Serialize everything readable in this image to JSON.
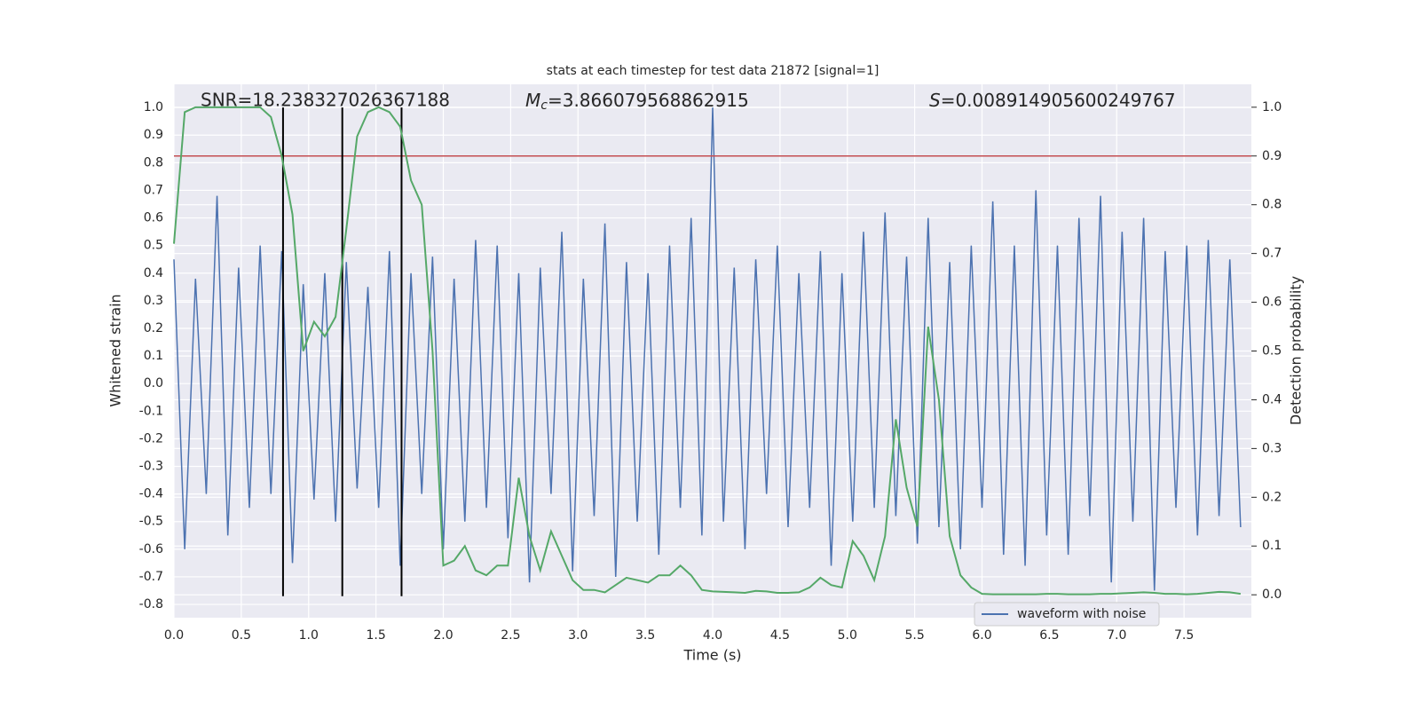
{
  "chart_data": {
    "type": "line",
    "title": "stats at each timestep for test data 21872 [signal=1]",
    "xlabel": "Time (s)",
    "ylabel": "Whitened strain",
    "y2label": "Detection probability",
    "annotations": {
      "snr": "SNR=18.238327026367188",
      "mc": {
        "symbol": "M",
        "sub": "c",
        "text": "=3.866079568862915"
      },
      "s": {
        "symbol": "S",
        "text": "=0.008914905600249767"
      }
    },
    "x": [
      0,
      0.08,
      0.16,
      0.24,
      0.32,
      0.4,
      0.48,
      0.56,
      0.64,
      0.72,
      0.8,
      0.88,
      0.96,
      1.04,
      1.12,
      1.2,
      1.28,
      1.36,
      1.44,
      1.52,
      1.6,
      1.68,
      1.76,
      1.84,
      1.92,
      2.0,
      2.08,
      2.16,
      2.24,
      2.32,
      2.4,
      2.48,
      2.56,
      2.64,
      2.72,
      2.8,
      2.88,
      2.96,
      3.04,
      3.12,
      3.2,
      3.28,
      3.36,
      3.44,
      3.52,
      3.6,
      3.68,
      3.76,
      3.84,
      3.92,
      4.0,
      4.08,
      4.16,
      4.24,
      4.32,
      4.4,
      4.48,
      4.56,
      4.64,
      4.72,
      4.8,
      4.88,
      4.96,
      5.04,
      5.12,
      5.2,
      5.28,
      5.36,
      5.44,
      5.52,
      5.6,
      5.68,
      5.76,
      5.84,
      5.92,
      6.0,
      6.08,
      6.16,
      6.24,
      6.32,
      6.4,
      6.48,
      6.56,
      6.64,
      6.72,
      6.8,
      6.88,
      6.96,
      7.04,
      7.12,
      7.2,
      7.28,
      7.36,
      7.44,
      7.52,
      7.6,
      7.68,
      7.76,
      7.84,
      7.92
    ],
    "series": [
      {
        "name": "waveform with noise",
        "color": "#4c72b0",
        "values": [
          0.45,
          -0.6,
          0.38,
          -0.4,
          0.68,
          -0.55,
          0.42,
          -0.45,
          0.5,
          -0.4,
          0.48,
          -0.65,
          0.36,
          -0.42,
          0.4,
          -0.5,
          0.44,
          -0.38,
          0.35,
          -0.45,
          0.48,
          -0.66,
          0.4,
          -0.4,
          0.46,
          -0.6,
          0.38,
          -0.5,
          0.52,
          -0.45,
          0.5,
          -0.56,
          0.4,
          -0.72,
          0.42,
          -0.4,
          0.55,
          -0.68,
          0.38,
          -0.48,
          0.58,
          -0.7,
          0.44,
          -0.5,
          0.4,
          -0.62,
          0.5,
          -0.45,
          0.6,
          -0.55,
          1.0,
          -0.5,
          0.42,
          -0.6,
          0.45,
          -0.4,
          0.5,
          -0.52,
          0.4,
          -0.45,
          0.48,
          -0.66,
          0.4,
          -0.5,
          0.55,
          -0.45,
          0.62,
          -0.48,
          0.46,
          -0.58,
          0.6,
          -0.52,
          0.44,
          -0.6,
          0.5,
          -0.45,
          0.66,
          -0.62,
          0.5,
          -0.66,
          0.7,
          -0.55,
          0.5,
          -0.62,
          0.6,
          -0.48,
          0.68,
          -0.72,
          0.55,
          -0.5,
          0.6,
          -0.75,
          0.48,
          -0.45,
          0.5,
          -0.55,
          0.52,
          -0.48,
          0.45,
          -0.52
        ]
      }
    ],
    "probability": {
      "color": "#55a868",
      "axis": "y2",
      "values": [
        0.72,
        0.99,
        1.0,
        1.0,
        1.0,
        1.0,
        1.0,
        1.0,
        1.0,
        0.98,
        0.9,
        0.78,
        0.5,
        0.56,
        0.53,
        0.57,
        0.75,
        0.94,
        0.99,
        1.0,
        0.99,
        0.96,
        0.85,
        0.8,
        0.5,
        0.06,
        0.07,
        0.1,
        0.05,
        0.04,
        0.06,
        0.06,
        0.24,
        0.12,
        0.05,
        0.13,
        0.08,
        0.03,
        0.01,
        0.01,
        0.005,
        0.02,
        0.035,
        0.03,
        0.025,
        0.04,
        0.04,
        0.06,
        0.04,
        0.01,
        0.007,
        0.006,
        0.005,
        0.004,
        0.008,
        0.007,
        0.004,
        0.004,
        0.005,
        0.015,
        0.035,
        0.02,
        0.015,
        0.11,
        0.08,
        0.03,
        0.12,
        0.36,
        0.22,
        0.14,
        0.55,
        0.4,
        0.12,
        0.04,
        0.015,
        0.002,
        0.001,
        0.001,
        0.001,
        0.001,
        0.001,
        0.002,
        0.002,
        0.001,
        0.001,
        0.001,
        0.002,
        0.002,
        0.003,
        0.004,
        0.005,
        0.004,
        0.002,
        0.002,
        0.001,
        0.002,
        0.004,
        0.006,
        0.005,
        0.002
      ]
    },
    "threshold": {
      "value": 0.9,
      "axis": "y2",
      "color": "#c44e52"
    },
    "vlines": {
      "x": [
        0.81,
        1.25,
        1.69
      ],
      "ymin": -0.77,
      "ymax": 1.0,
      "color": "#000000"
    },
    "xlim": [
      0,
      8.0
    ],
    "ylim": [
      -0.848,
      1.084
    ],
    "y2lim": [
      -0.047,
      1.047
    ],
    "xticks": [
      {
        "value": 0,
        "label": "0.0"
      },
      0.5,
      {
        "value": 1,
        "label": "1.0"
      },
      1.5,
      {
        "value": 2,
        "label": "2.0"
      },
      2.5,
      {
        "value": 3,
        "label": "3.0"
      },
      3.5,
      {
        "value": 4,
        "label": "4.0"
      },
      4.5,
      {
        "value": 5,
        "label": "5.0"
      },
      5.5,
      {
        "value": 6,
        "label": "6.0"
      },
      6.5,
      {
        "value": 7,
        "label": "7.0"
      },
      7.5
    ],
    "yticks": [
      -0.8,
      -0.7,
      -0.6,
      -0.5,
      -0.4,
      -0.3,
      -0.2,
      -0.1,
      {
        "value": 0,
        "label": "0.0"
      },
      0.1,
      0.2,
      0.3,
      0.4,
      0.5,
      0.6,
      0.7,
      0.8,
      0.9,
      {
        "value": 1,
        "label": "1.0"
      }
    ],
    "y2ticks": [
      {
        "value": 0,
        "label": "0.0"
      },
      0.1,
      0.2,
      0.3,
      0.4,
      0.5,
      0.6,
      0.7,
      0.8,
      0.9,
      {
        "value": 1,
        "label": "1.0"
      }
    ],
    "grid": true,
    "legend": "lower right"
  }
}
